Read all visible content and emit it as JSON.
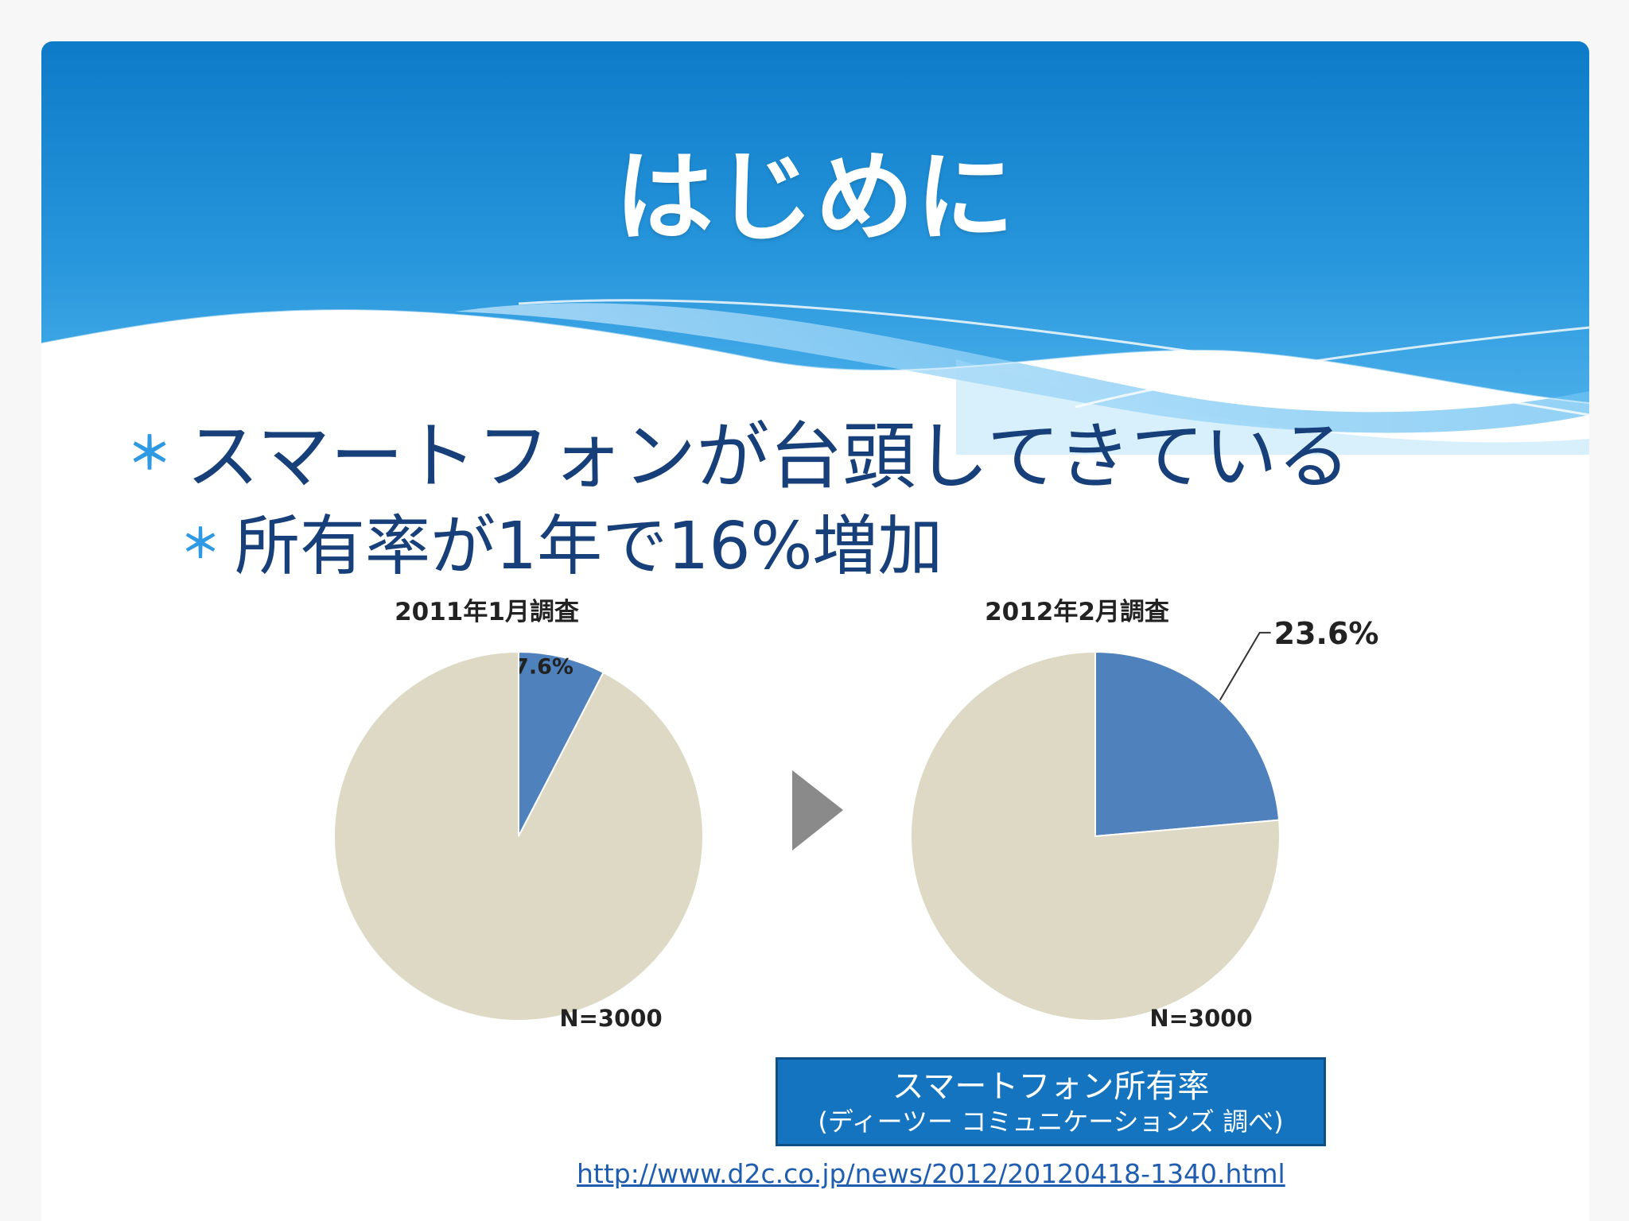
{
  "slide": {
    "title": "はじめに",
    "bullets": [
      {
        "level": 1,
        "text": "スマートフォンが台頭してきている"
      },
      {
        "level": 2,
        "text": "所有率が1年で16%増加"
      }
    ]
  },
  "colors": {
    "header_blue": "#1f86d0",
    "header_light": "#5ab8ef",
    "bullet_mark": "#2f9ae3",
    "text_dark_blue": "#173f7a",
    "slice_smartphone": "#4f81bd",
    "slice_other": "#ddd9c4",
    "arrow_gray": "#8a8a8a",
    "source_box": "#1574c0"
  },
  "chart_data": [
    {
      "type": "pie",
      "title": "2011年1月調査",
      "slices": [
        {
          "label": "7.6%",
          "value": 7.6
        },
        {
          "label": "",
          "value": 92.4
        }
      ],
      "note": "N=3000"
    },
    {
      "type": "pie",
      "title": "2012年2月調査",
      "slices": [
        {
          "label": "23.6%",
          "value": 23.6
        },
        {
          "label": "",
          "value": 76.4
        }
      ],
      "note": "N=3000"
    }
  ],
  "arrow_icon": "play-triangle-icon",
  "source": {
    "title": "スマートフォン所有率",
    "subtitle": "(ディーツー コミュニケーションズ 調べ)",
    "url": "http://www.d2c.co.jp/news/2012/20120418-1340.html"
  }
}
